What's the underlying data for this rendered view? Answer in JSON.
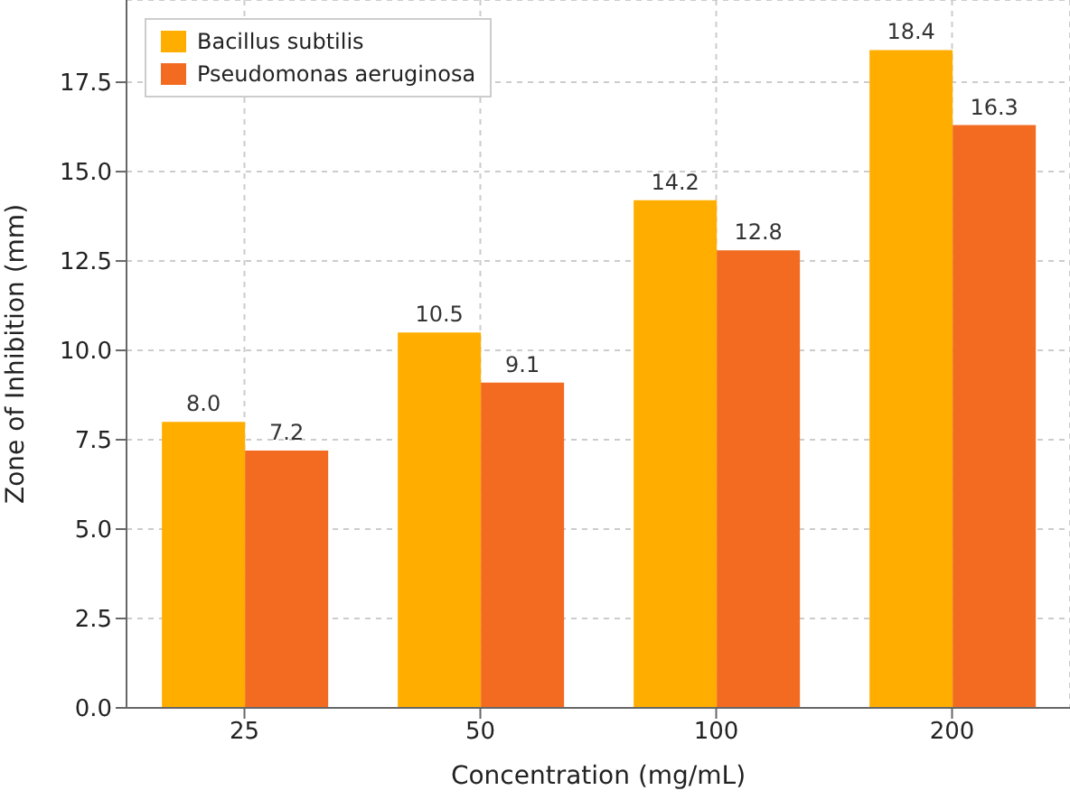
{
  "chart_data": {
    "type": "bar",
    "xlabel": "Concentration (mg/mL)",
    "ylabel": "Zone of Inhibition (mm)",
    "categories": [
      "25",
      "50",
      "100",
      "200"
    ],
    "series": [
      {
        "name": "Bacillus subtilis",
        "color": "#ffae00",
        "values": [
          8.0,
          10.5,
          14.2,
          18.4
        ],
        "value_labels": [
          "8.0",
          "10.5",
          "14.2",
          "18.4"
        ]
      },
      {
        "name": "Pseudomonas aeruginosa",
        "color": "#f26b21",
        "values": [
          7.2,
          9.1,
          12.8,
          16.3
        ],
        "value_labels": [
          "7.2",
          "9.1",
          "12.8",
          "16.3"
        ]
      }
    ],
    "ylim": [
      0,
      19.8
    ],
    "yticks": [
      {
        "value": 0,
        "label": "0.0"
      },
      {
        "value": 2.5,
        "label": "2.5"
      },
      {
        "value": 5,
        "label": "5.0"
      },
      {
        "value": 7.5,
        "label": "7.5"
      },
      {
        "value": 10,
        "label": "10.0"
      },
      {
        "value": 12.5,
        "label": "12.5"
      },
      {
        "value": 15,
        "label": "15.0"
      },
      {
        "value": 17.5,
        "label": "17.5"
      }
    ],
    "grid": true,
    "legend": "top left"
  }
}
